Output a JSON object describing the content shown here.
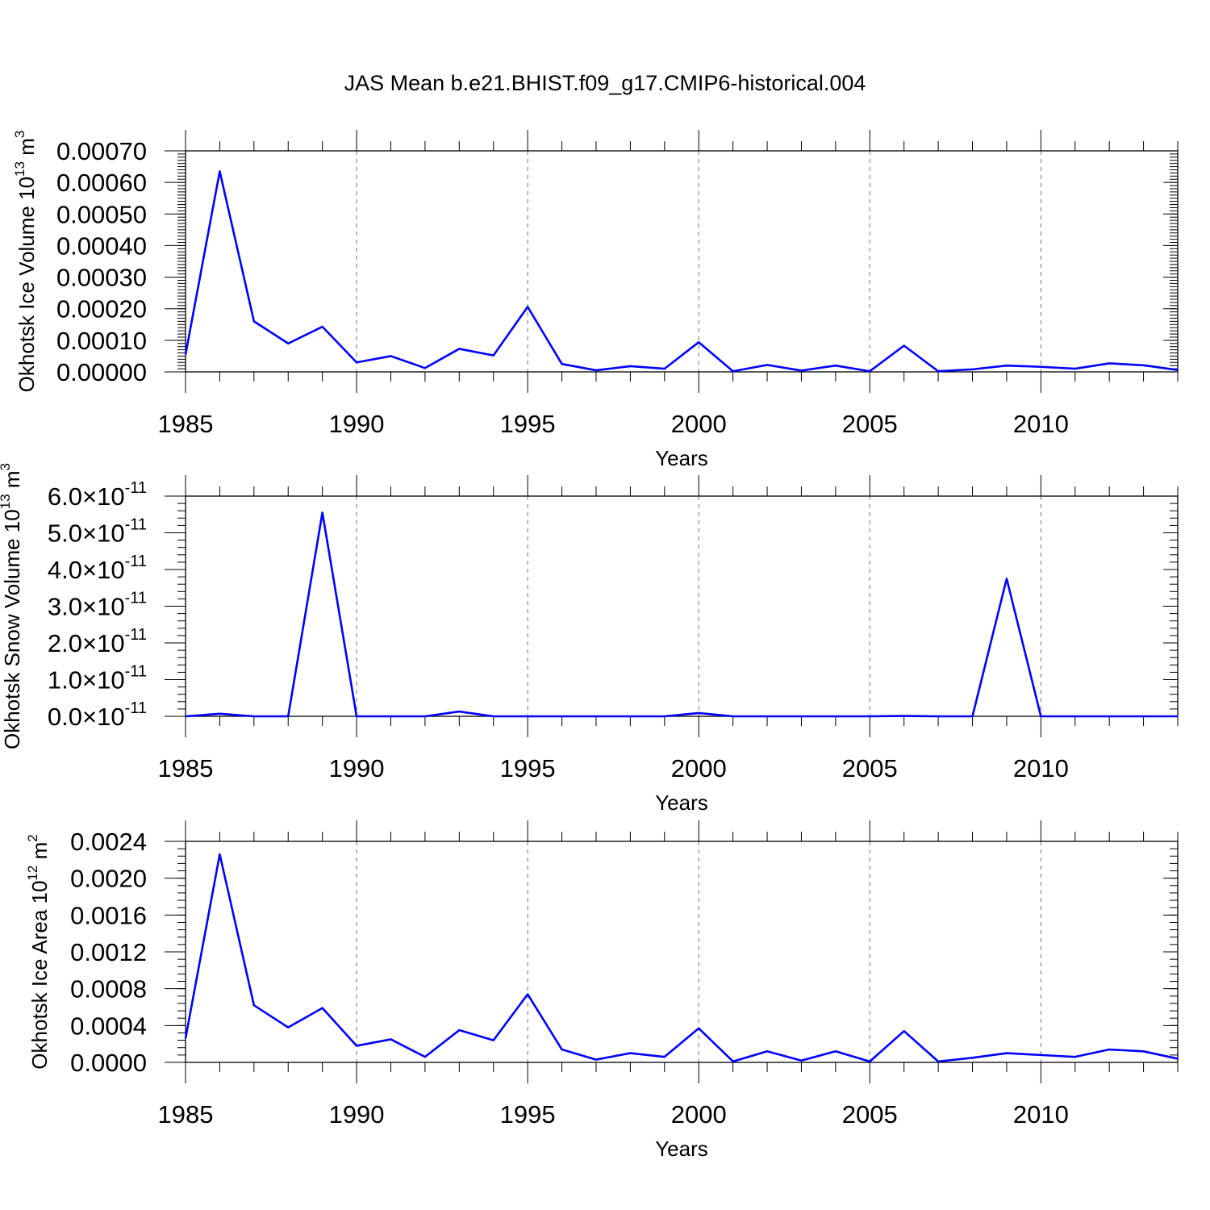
{
  "figure": {
    "title": "JAS Mean b.e21.BHIST.f09_g17.CMIP6-historical.004"
  },
  "chart_data": [
    {
      "type": "line",
      "ylabel": "Okhotsk Ice Volume",
      "ylabel_unit_prefix": "10",
      "ylabel_unit_exp": "13",
      "ylabel_unit_suffix": "m",
      "ylabel_unit_suffix_exp": "3",
      "xlabel": "Years",
      "xlim": [
        1985,
        2014
      ],
      "ylim": [
        0,
        0.0007
      ],
      "x_ticks": [
        1985,
        1990,
        1995,
        2000,
        2005,
        2010
      ],
      "x_tick_labels": [
        "1985",
        "1990",
        "1995",
        "2000",
        "2005",
        "2010"
      ],
      "y_ticks": [
        0,
        0.0001,
        0.0002,
        0.0003,
        0.0004,
        0.0005,
        0.0006,
        0.0007
      ],
      "y_tick_labels": [
        "0.00000",
        "0.00010",
        "0.00020",
        "0.00030",
        "0.00040",
        "0.00050",
        "0.00060",
        "0.00070"
      ],
      "grid": "x-dashed",
      "line_color": "#0000ff",
      "x": [
        1985,
        1986,
        1987,
        1988,
        1989,
        1990,
        1991,
        1992,
        1993,
        1994,
        1995,
        1996,
        1997,
        1998,
        1999,
        2000,
        2001,
        2002,
        2003,
        2004,
        2005,
        2006,
        2007,
        2008,
        2009,
        2010,
        2011,
        2012,
        2013,
        2014
      ],
      "values": [
        5.5e-05,
        0.000635,
        0.00016,
        9e-05,
        0.000143,
        3e-05,
        5e-05,
        1.2e-05,
        7.3e-05,
        5.2e-05,
        0.000206,
        2.5e-05,
        5e-06,
        1.8e-05,
        1e-05,
        9.4e-05,
        2e-06,
        2.2e-05,
        4e-06,
        2e-05,
        2e-06,
        8.3e-05,
        2e-06,
        8e-06,
        2e-05,
        1.6e-05,
        1e-05,
        2.7e-05,
        2.1e-05,
        6e-06
      ]
    },
    {
      "type": "line",
      "ylabel": "Okhotsk Snow Volume",
      "ylabel_unit_prefix": "10",
      "ylabel_unit_exp": "13",
      "ylabel_unit_suffix": "m",
      "ylabel_unit_suffix_exp": "3",
      "xlabel": "Years",
      "xlim": [
        1985,
        2014
      ],
      "ylim": [
        0,
        6e-11
      ],
      "x_ticks": [
        1985,
        1990,
        1995,
        2000,
        2005,
        2010
      ],
      "x_tick_labels": [
        "1985",
        "1990",
        "1995",
        "2000",
        "2005",
        "2010"
      ],
      "y_ticks": [
        0,
        1e-11,
        2e-11,
        3e-11,
        4e-11,
        5e-11,
        6e-11
      ],
      "y_tick_labels": [
        {
          "mantissa": "0.0",
          "exp": "-11"
        },
        {
          "mantissa": "1.0",
          "exp": "-11"
        },
        {
          "mantissa": "2.0",
          "exp": "-11"
        },
        {
          "mantissa": "3.0",
          "exp": "-11"
        },
        {
          "mantissa": "4.0",
          "exp": "-11"
        },
        {
          "mantissa": "5.0",
          "exp": "-11"
        },
        {
          "mantissa": "6.0",
          "exp": "-11"
        }
      ],
      "grid": "x-dashed",
      "line_color": "#0000ff",
      "x": [
        1985,
        1986,
        1987,
        1988,
        1989,
        1990,
        1991,
        1992,
        1993,
        1994,
        1995,
        1996,
        1997,
        1998,
        1999,
        2000,
        2001,
        2002,
        2003,
        2004,
        2005,
        2006,
        2007,
        2008,
        2009,
        2010,
        2011,
        2012,
        2013,
        2014
      ],
      "values": [
        0,
        7e-13,
        0,
        0,
        5.55e-11,
        0,
        0,
        0,
        1.3e-12,
        0,
        0,
        0,
        0,
        0,
        0,
        9e-13,
        0,
        0,
        0,
        0,
        0,
        1e-13,
        0,
        0,
        3.75e-11,
        0,
        0,
        0,
        0,
        0
      ]
    },
    {
      "type": "line",
      "ylabel": "Okhotsk Ice Area",
      "ylabel_unit_prefix": "10",
      "ylabel_unit_exp": "12",
      "ylabel_unit_suffix": "m",
      "ylabel_unit_suffix_exp": "2",
      "xlabel": "Years",
      "xlim": [
        1985,
        2014
      ],
      "ylim": [
        0,
        0.0024
      ],
      "x_ticks": [
        1985,
        1990,
        1995,
        2000,
        2005,
        2010
      ],
      "x_tick_labels": [
        "1985",
        "1990",
        "1995",
        "2000",
        "2005",
        "2010"
      ],
      "y_ticks": [
        0,
        0.0004,
        0.0008,
        0.0012,
        0.0016,
        0.002,
        0.0024
      ],
      "y_tick_labels": [
        "0.0000",
        "0.0004",
        "0.0008",
        "0.0012",
        "0.0016",
        "0.0020",
        "0.0024"
      ],
      "grid": "x-dashed",
      "line_color": "#0000ff",
      "x": [
        1985,
        1986,
        1987,
        1988,
        1989,
        1990,
        1991,
        1992,
        1993,
        1994,
        1995,
        1996,
        1997,
        1998,
        1999,
        2000,
        2001,
        2002,
        2003,
        2004,
        2005,
        2006,
        2007,
        2008,
        2009,
        2010,
        2011,
        2012,
        2013,
        2014
      ],
      "values": [
        0.00026,
        0.00226,
        0.00062,
        0.00038,
        0.00059,
        0.00018,
        0.00025,
        6e-05,
        0.00035,
        0.00024,
        0.00074,
        0.00014,
        3e-05,
        0.0001,
        6e-05,
        0.00037,
        1e-05,
        0.00012,
        2e-05,
        0.00012,
        1e-05,
        0.00034,
        1e-05,
        5e-05,
        0.0001,
        8e-05,
        6e-05,
        0.00014,
        0.00012,
        4e-05
      ]
    }
  ]
}
